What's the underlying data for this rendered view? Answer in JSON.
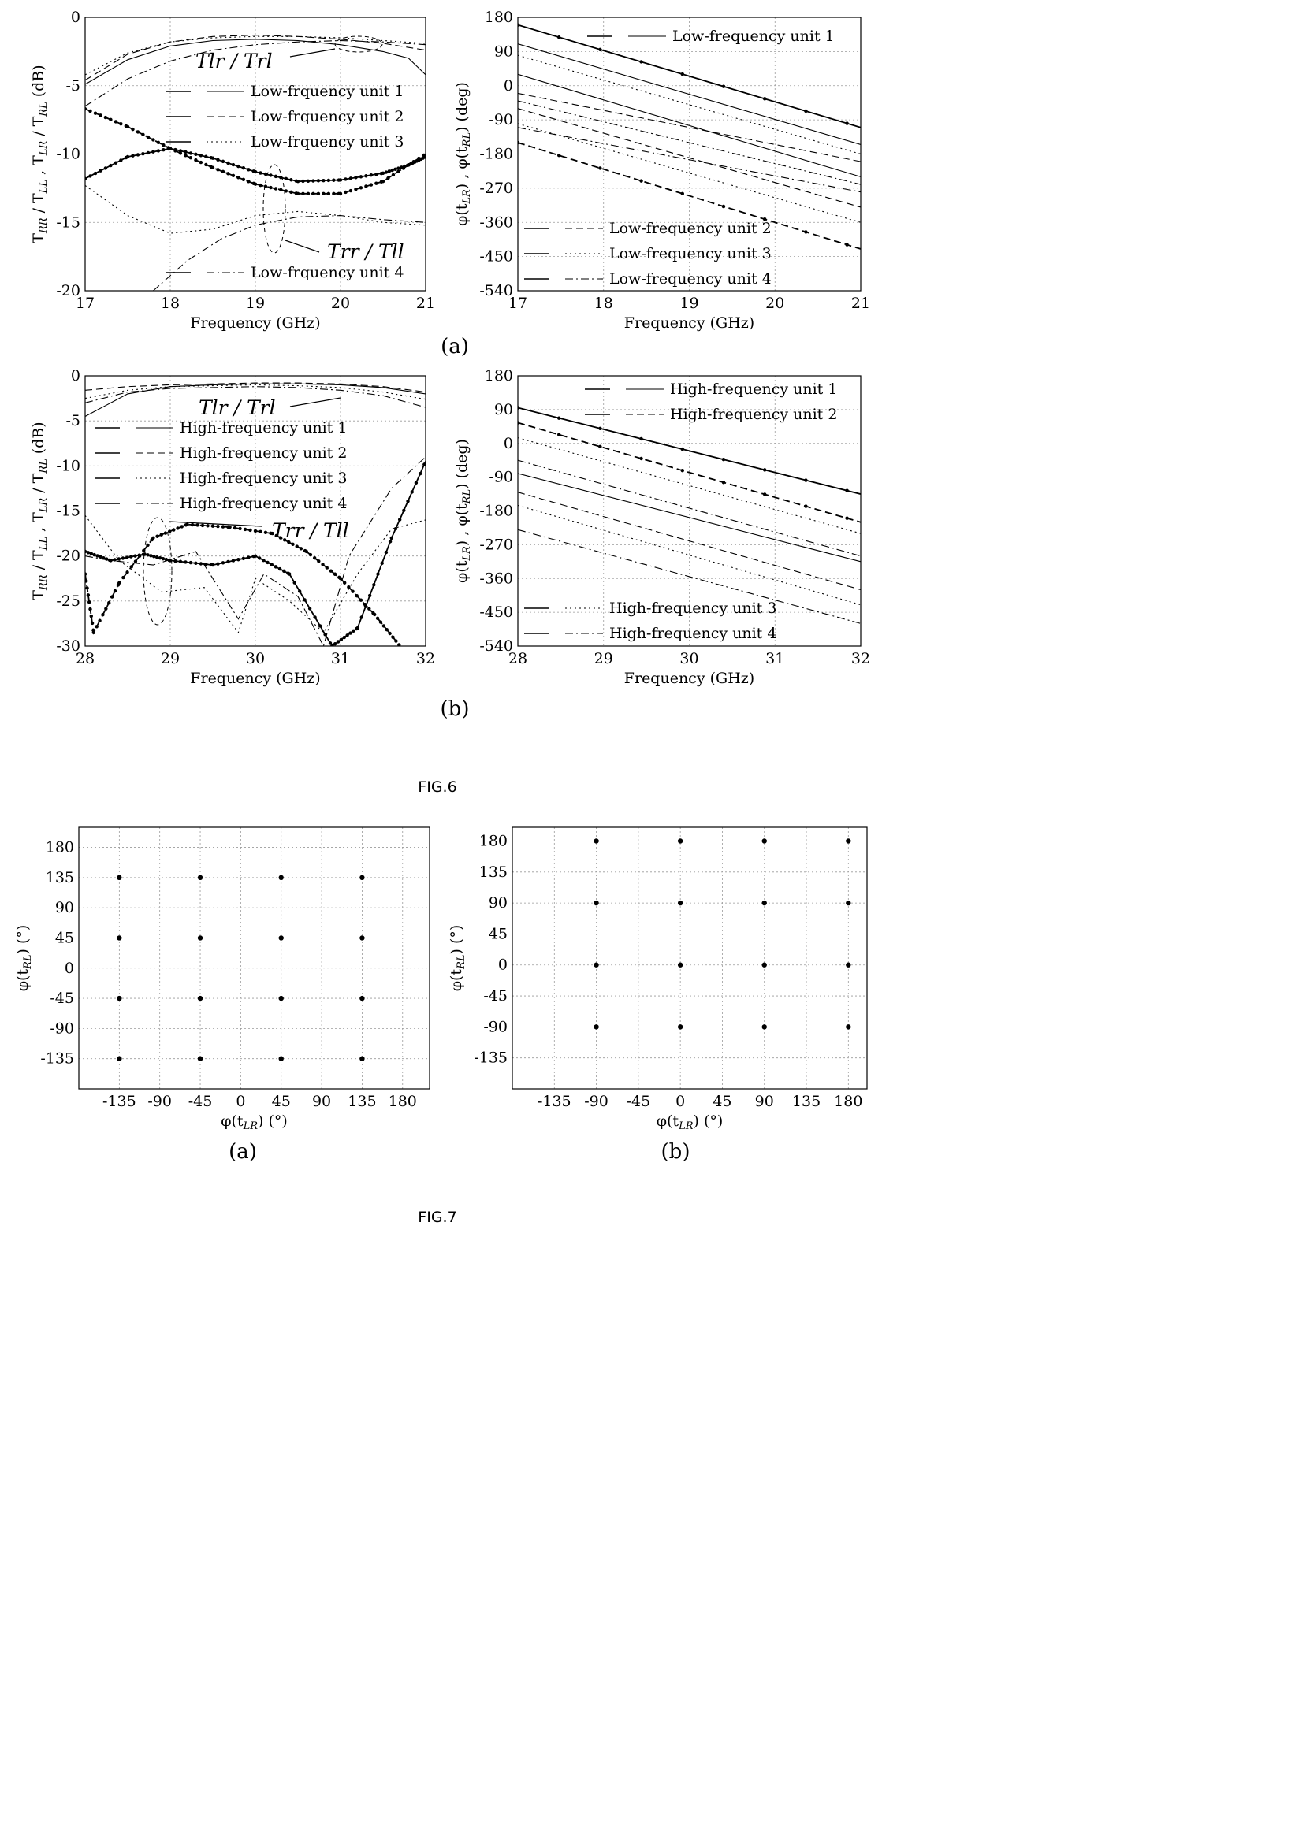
{
  "figure_labels": [
    "FIG.6",
    "FIG.7"
  ],
  "subfigure_labels": {
    "fig6a": "(a)",
    "fig6b": "(b)",
    "fig7a": "(a)",
    "fig7b": "(b)"
  },
  "chart_data": [
    {
      "id": "fig6a-left",
      "type": "line",
      "xlabel": "Frequency (GHz)",
      "ylabel": "T_RR / T_LL , T_LR / T_RL (dB)",
      "xlim": [
        17,
        21
      ],
      "ylim": [
        -20,
        0
      ],
      "xticks": [
        17,
        18,
        19,
        20,
        21
      ],
      "yticks": [
        0,
        -5,
        -10,
        -15,
        -20
      ],
      "annotations": [
        "Tlr / Trl",
        "Trr / Tll"
      ],
      "series": [
        {
          "name": "Low-frquency unit 1",
          "group": "Tlr/Trl",
          "style": "solid",
          "x": [
            17,
            17.5,
            18,
            18.5,
            19,
            19.5,
            20,
            20.5,
            20.8,
            21
          ],
          "y": [
            -4.9,
            -3.1,
            -2.1,
            -1.7,
            -1.6,
            -1.7,
            -2.0,
            -2.5,
            -3.0,
            -4.2
          ]
        },
        {
          "name": "Low-frquency unit 1",
          "group": "Trr/Tll",
          "style": "solid",
          "markers": true,
          "x": [
            17,
            17.5,
            18,
            18.5,
            19,
            19.5,
            20,
            20.5,
            20.8,
            21
          ],
          "y": [
            -11.8,
            -10.2,
            -9.6,
            -10.3,
            -11.3,
            -12.0,
            -11.9,
            -11.4,
            -10.8,
            -10.2
          ]
        },
        {
          "name": "Low-frquency unit 2",
          "group": "Tlr/Trl",
          "style": "dashed",
          "x": [
            17,
            17.5,
            18,
            18.5,
            19,
            19.5,
            20,
            20.5,
            21
          ],
          "y": [
            -4.6,
            -2.7,
            -1.8,
            -1.4,
            -1.3,
            -1.4,
            -1.6,
            -1.9,
            -2.4
          ]
        },
        {
          "name": "Low-frquency unit 2",
          "group": "Trr/Tll",
          "style": "dashed",
          "markers": true,
          "x": [
            17,
            17.5,
            18,
            18.5,
            19,
            19.5,
            20,
            20.5,
            21
          ],
          "y": [
            -6.7,
            -8.0,
            -9.6,
            -11.0,
            -12.2,
            -12.9,
            -12.9,
            -12.0,
            -10.0
          ]
        },
        {
          "name": "Low-frquency unit 3",
          "group": "Tlr/Trl",
          "style": "dotted",
          "x": [
            17,
            17.5,
            18,
            18.5,
            19,
            19.5,
            20,
            20.5,
            21
          ],
          "y": [
            -4.2,
            -2.6,
            -1.8,
            -1.5,
            -1.4,
            -1.4,
            -1.5,
            -1.7,
            -1.9
          ]
        },
        {
          "name": "Low-frquency unit 3",
          "group": "Trr/Tll",
          "style": "dotted",
          "x": [
            17,
            17.5,
            18,
            18.5,
            19,
            19.5,
            20,
            20.5,
            21
          ],
          "y": [
            -12.3,
            -14.5,
            -15.8,
            -15.5,
            -14.5,
            -14.2,
            -14.5,
            -15.0,
            -15.2
          ]
        },
        {
          "name": "Low-frquency unit 4",
          "group": "Tlr/Trl",
          "style": "dashdot",
          "x": [
            17,
            17.5,
            18,
            18.5,
            19,
            19.5,
            20,
            20.5,
            21
          ],
          "y": [
            -6.5,
            -4.5,
            -3.2,
            -2.4,
            -2.0,
            -1.8,
            -1.7,
            -1.8,
            -2.0
          ]
        },
        {
          "name": "Low-frquency unit 4",
          "group": "Trr/Tll",
          "style": "dashdot",
          "x": [
            17.8,
            18.2,
            18.6,
            19,
            19.5,
            20,
            20.5,
            21
          ],
          "y": [
            -20,
            -17.8,
            -16.2,
            -15.2,
            -14.6,
            -14.5,
            -14.8,
            -15.0
          ]
        }
      ]
    },
    {
      "id": "fig6a-right",
      "type": "line",
      "xlabel": "Frequency (GHz)",
      "ylabel": "φ(t_LR) , φ(t_RL) (deg)",
      "xlim": [
        17,
        21
      ],
      "ylim": [
        -540,
        180
      ],
      "xticks": [
        17,
        18,
        19,
        20,
        21
      ],
      "yticks": [
        180,
        90,
        0,
        -90,
        -180,
        -270,
        -360,
        -450,
        -540
      ],
      "series": [
        {
          "name": "Low-frequency unit 1",
          "style": "solid",
          "markers": true,
          "x": [
            17,
            21
          ],
          "y": [
            160,
            -110
          ]
        },
        {
          "name": "Low-frequency unit 1",
          "style": "solid",
          "x": [
            17,
            21
          ],
          "y": [
            110,
            -155
          ]
        },
        {
          "name": "Low-frequency unit 1",
          "style": "solid",
          "x": [
            17,
            21
          ],
          "y": [
            30,
            -240
          ]
        },
        {
          "name": "Low-frequency unit 2",
          "style": "dashed",
          "x": [
            17,
            21
          ],
          "y": [
            -20,
            -200
          ]
        },
        {
          "name": "Low-frequency unit 2",
          "style": "dashed",
          "x": [
            17,
            21
          ],
          "y": [
            -60,
            -320
          ]
        },
        {
          "name": "Low-frequency unit 2",
          "style": "dashed",
          "markers": true,
          "x": [
            17,
            21
          ],
          "y": [
            -150,
            -430
          ]
        },
        {
          "name": "Low-frequency unit 3",
          "style": "dotted",
          "x": [
            17,
            21
          ],
          "y": [
            80,
            -180
          ]
        },
        {
          "name": "Low-frequency unit 3",
          "style": "dotted",
          "x": [
            17,
            21
          ],
          "y": [
            -100,
            -360
          ]
        },
        {
          "name": "Low-frequency unit 4",
          "style": "dashdot",
          "x": [
            17,
            21
          ],
          "y": [
            -110,
            -280
          ]
        },
        {
          "name": "Low-frequency unit 4",
          "style": "dashdot",
          "x": [
            17,
            21
          ],
          "y": [
            -40,
            -260
          ]
        }
      ]
    },
    {
      "id": "fig6b-left",
      "type": "line",
      "xlabel": "Frequency (GHz)",
      "ylabel": "T_RR / T_LL , T_LR / T_RL (dB)",
      "xlim": [
        28,
        32
      ],
      "ylim": [
        -30,
        0
      ],
      "xticks": [
        28,
        29,
        30,
        31,
        32
      ],
      "yticks": [
        0,
        -5,
        -10,
        -15,
        -20,
        -25,
        -30
      ],
      "annotations": [
        "Tlr / Trl",
        "Trr / Tll"
      ],
      "series": [
        {
          "name": "High-frequency unit 1",
          "group": "Tlr/Trl",
          "style": "solid",
          "x": [
            28,
            28.5,
            29,
            29.5,
            30,
            30.5,
            31,
            31.5,
            32
          ],
          "y": [
            -4.5,
            -2.0,
            -1.2,
            -1.0,
            -0.9,
            -0.9,
            -1.0,
            -1.3,
            -2.0
          ]
        },
        {
          "name": "High-frequency unit 1",
          "group": "Trr/Tll",
          "style": "solid",
          "markers": true,
          "x": [
            28,
            28.3,
            28.7,
            29,
            29.5,
            30,
            30.4,
            30.9,
            31.2,
            31.6,
            32
          ],
          "y": [
            -19.5,
            -20.5,
            -19.8,
            -20.5,
            -21.0,
            -20.0,
            -22.0,
            -30,
            -28.0,
            -18.0,
            -9.5
          ]
        },
        {
          "name": "High-frequency unit 2",
          "group": "Tlr/Trl",
          "style": "dashed",
          "x": [
            28,
            28.5,
            29,
            29.5,
            30,
            30.5,
            31,
            31.5,
            32
          ],
          "y": [
            -1.6,
            -1.2,
            -1.0,
            -0.9,
            -0.8,
            -0.8,
            -0.9,
            -1.2,
            -1.8
          ]
        },
        {
          "name": "High-frequency unit 2",
          "group": "Trr/Tll",
          "style": "dashed",
          "markers": true,
          "x": [
            28,
            28.1,
            28.4,
            28.8,
            29.2,
            29.7,
            30.2,
            30.6,
            31,
            31.4,
            31.7
          ],
          "y": [
            -22.0,
            -28.5,
            -23.0,
            -18.0,
            -16.5,
            -16.8,
            -17.5,
            -19.5,
            -22.5,
            -26.5,
            -30
          ]
        },
        {
          "name": "High-frequency unit 3",
          "group": "Tlr/Trl",
          "style": "dotted",
          "x": [
            28,
            28.5,
            29,
            29.5,
            30,
            30.5,
            31,
            31.5,
            32
          ],
          "y": [
            -2.5,
            -1.6,
            -1.2,
            -1.1,
            -1.0,
            -1.1,
            -1.3,
            -1.8,
            -2.6
          ]
        },
        {
          "name": "High-frequency unit 3",
          "group": "Trr/Tll",
          "style": "dotted",
          "x": [
            28,
            28.4,
            28.9,
            29.4,
            29.8,
            30,
            30.4,
            30.8,
            31.2,
            31.6,
            32
          ],
          "y": [
            -15.5,
            -20.5,
            -24.0,
            -23.5,
            -28.5,
            -22.5,
            -25.0,
            -28.5,
            -22.0,
            -17.0,
            -16.0
          ]
        },
        {
          "name": "High-frequency unit 4",
          "group": "Tlr/Trl",
          "style": "dashdot",
          "x": [
            28,
            28.5,
            29,
            29.5,
            30,
            30.5,
            31,
            31.5,
            32
          ],
          "y": [
            -3.0,
            -1.8,
            -1.4,
            -1.3,
            -1.2,
            -1.3,
            -1.6,
            -2.2,
            -3.5
          ]
        },
        {
          "name": "High-frequency unit 4",
          "group": "Trr/Tll",
          "style": "dashdot",
          "x": [
            28,
            28.3,
            28.8,
            29.3,
            29.8,
            30.1,
            30.5,
            30.8,
            31.1,
            31.6,
            32
          ],
          "y": [
            -20.0,
            -20.5,
            -21.0,
            -19.5,
            -27.0,
            -22.0,
            -24.5,
            -30,
            -20.0,
            -12.5,
            -9.0
          ]
        }
      ]
    },
    {
      "id": "fig6b-right",
      "type": "line",
      "xlabel": "Frequency (GHz)",
      "ylabel": "φ(t_LR) , φ(t_RL) (deg)",
      "xlim": [
        28,
        32
      ],
      "ylim": [
        -540,
        180
      ],
      "xticks": [
        28,
        29,
        30,
        31,
        32
      ],
      "yticks": [
        180,
        90,
        0,
        -90,
        -180,
        -270,
        -360,
        -450,
        -540
      ],
      "series": [
        {
          "name": "High-frequency unit 1",
          "style": "solid",
          "markers": true,
          "x": [
            28,
            32
          ],
          "y": [
            95,
            -135
          ]
        },
        {
          "name": "High-frequency unit 1",
          "style": "solid",
          "x": [
            28,
            32
          ],
          "y": [
            -80,
            -315
          ]
        },
        {
          "name": "High-frequency unit 2",
          "style": "dashed",
          "markers": true,
          "x": [
            28,
            32
          ],
          "y": [
            55,
            -210
          ]
        },
        {
          "name": "High-frequency unit 2",
          "style": "dashed",
          "x": [
            28,
            32
          ],
          "y": [
            -130,
            -390
          ]
        },
        {
          "name": "High-frequency unit 3",
          "style": "dotted",
          "x": [
            28,
            32
          ],
          "y": [
            15,
            -240
          ]
        },
        {
          "name": "High-frequency unit 3",
          "style": "dotted",
          "x": [
            28,
            32
          ],
          "y": [
            -165,
            -430
          ]
        },
        {
          "name": "High-frequency unit 4",
          "style": "dashdot",
          "x": [
            28,
            32
          ],
          "y": [
            -45,
            -300
          ]
        },
        {
          "name": "High-frequency unit 4",
          "style": "dashdot",
          "x": [
            28,
            32
          ],
          "y": [
            -230,
            -480
          ]
        }
      ]
    },
    {
      "id": "fig7a",
      "type": "scatter",
      "xlabel": "φ(t_LR) (°)",
      "ylabel": "φ(t_RL) (°)",
      "xlim": [
        -180,
        210
      ],
      "ylim": [
        -180,
        210
      ],
      "xticks": [
        -135,
        -90,
        -45,
        0,
        45,
        90,
        135,
        180
      ],
      "yticks": [
        180,
        135,
        90,
        45,
        0,
        -45,
        -90,
        -135
      ],
      "x": [
        -135,
        -45,
        45,
        135,
        -135,
        -45,
        45,
        135,
        -135,
        -45,
        45,
        135,
        -135,
        -45,
        45,
        135
      ],
      "y": [
        135,
        135,
        135,
        135,
        45,
        45,
        45,
        45,
        -45,
        -45,
        -45,
        -45,
        -135,
        -135,
        -135,
        -135
      ]
    },
    {
      "id": "fig7b",
      "type": "scatter",
      "xlabel": "φ(t_LR) (°)",
      "ylabel": "φ(t_RL) (°)",
      "xlim": [
        -180,
        200
      ],
      "ylim": [
        -180,
        200
      ],
      "xticks": [
        -135,
        -90,
        -45,
        0,
        45,
        90,
        135,
        180
      ],
      "yticks": [
        180,
        135,
        90,
        45,
        0,
        -45,
        -90,
        -135
      ],
      "x": [
        -90,
        0,
        90,
        180,
        -90,
        0,
        90,
        180,
        -90,
        0,
        90,
        180,
        -90,
        0,
        90,
        180
      ],
      "y": [
        180,
        180,
        180,
        180,
        90,
        90,
        90,
        90,
        0,
        0,
        0,
        0,
        -90,
        -90,
        -90,
        -90
      ]
    }
  ]
}
